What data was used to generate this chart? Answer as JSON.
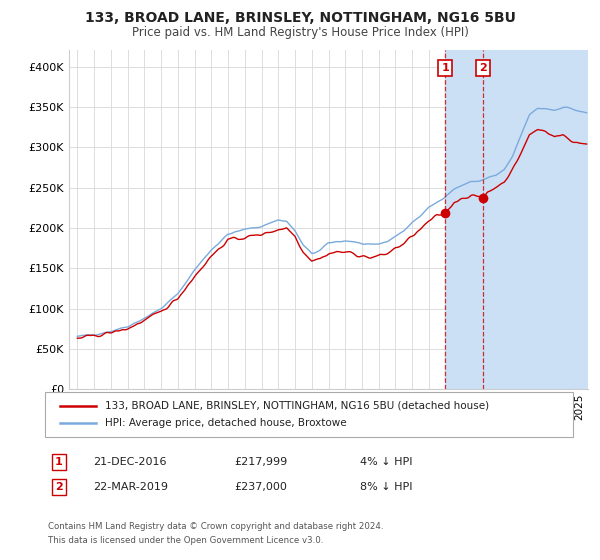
{
  "title": "133, BROAD LANE, BRINSLEY, NOTTINGHAM, NG16 5BU",
  "subtitle": "Price paid vs. HM Land Registry's House Price Index (HPI)",
  "legend_line1": "133, BROAD LANE, BRINSLEY, NOTTINGHAM, NG16 5BU (detached house)",
  "legend_line2": "HPI: Average price, detached house, Broxtowe",
  "annotation1": {
    "num": "1",
    "date": "21-DEC-2016",
    "price": "£217,999",
    "note": "4% ↓ HPI"
  },
  "annotation2": {
    "num": "2",
    "date": "22-MAR-2019",
    "price": "£237,000",
    "note": "8% ↓ HPI"
  },
  "footer1": "Contains HM Land Registry data © Crown copyright and database right 2024.",
  "footer2": "This data is licensed under the Open Government Licence v3.0.",
  "red_color": "#cc0000",
  "blue_color": "#7aaadd",
  "shade_color": "#cce0f5",
  "background_color": "#ffffff",
  "grid_color": "#dddddd",
  "ylim": [
    0,
    420000
  ],
  "yticks": [
    0,
    50000,
    100000,
    150000,
    200000,
    250000,
    300000,
    350000,
    400000
  ],
  "ytick_labels": [
    "£0",
    "£50K",
    "£100K",
    "£150K",
    "£200K",
    "£250K",
    "£300K",
    "£350K",
    "£400K"
  ],
  "sale1_x": 2016.972,
  "sale1_y": 217999,
  "sale2_x": 2019.222,
  "sale2_y": 237000,
  "vline1_x": 2016.972,
  "vline2_x": 2019.222,
  "xmin": 1995.0,
  "xmax": 2025.5
}
